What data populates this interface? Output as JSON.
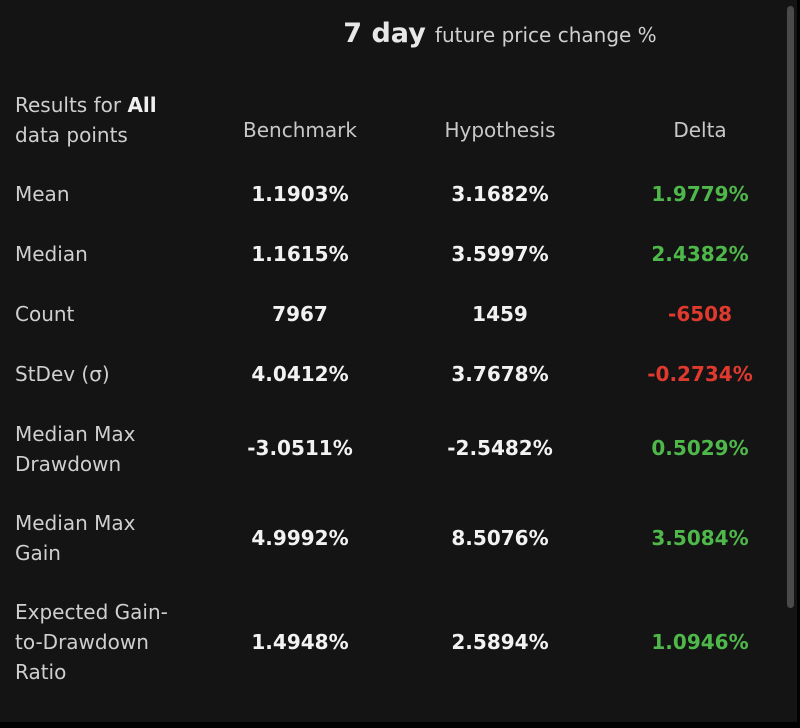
{
  "title": {
    "strong": "7 day",
    "rest": "future price change %"
  },
  "header": {
    "results_prefix": "Results for ",
    "results_bold": "All",
    "results_suffix": "data points",
    "col1": "Benchmark",
    "col2": "Hypothesis",
    "col3": "Delta"
  },
  "rows": [
    {
      "label_line1": "Mean",
      "label_line2": "",
      "benchmark": "1.1903%",
      "hypothesis": "3.1682%",
      "delta": "1.9779%"
    },
    {
      "label_line1": "Median",
      "label_line2": "",
      "benchmark": "1.1615%",
      "hypothesis": "3.5997%",
      "delta": "2.4382%"
    },
    {
      "label_line1": "Count",
      "label_line2": "",
      "benchmark": "7967",
      "hypothesis": "1459",
      "delta": "-6508"
    },
    {
      "label_line1": "StDev (σ)",
      "label_line2": "",
      "benchmark": "4.0412%",
      "hypothesis": "3.7678%",
      "delta": "-0.2734%"
    },
    {
      "label_line1": "Median Max",
      "label_line2": "Drawdown",
      "benchmark": "-3.0511%",
      "hypothesis": "-2.5482%",
      "delta": "0.5029%"
    },
    {
      "label_line1": "Median Max",
      "label_line2": "Gain",
      "benchmark": "4.9992%",
      "hypothesis": "8.5076%",
      "delta": "3.5084%"
    },
    {
      "label_line1": "Expected Gain-",
      "label_line2": "to-Drawdown",
      "label_line3": "Ratio",
      "benchmark": "1.4948%",
      "hypothesis": "2.5894%",
      "delta": "1.0946%"
    }
  ],
  "colors": {
    "background": "#141414",
    "positive": "#4fb84a",
    "negative": "#e03a2f"
  }
}
